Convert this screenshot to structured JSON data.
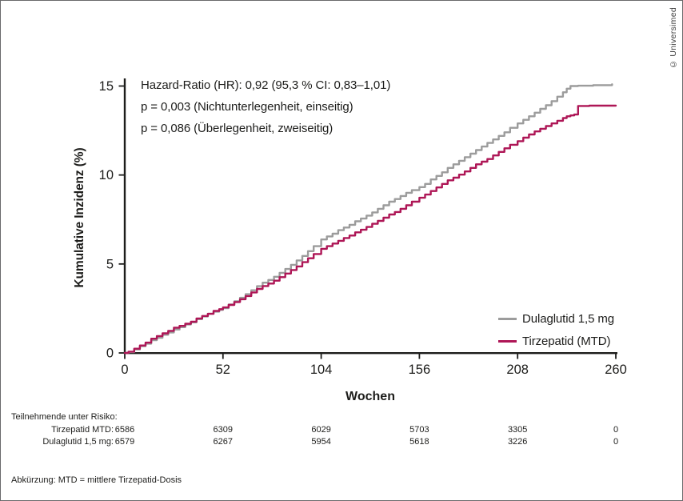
{
  "frame": {
    "copyright": "© Universimed"
  },
  "annotation": {
    "line1": "Hazard-Ratio (HR): 0,92 (95,3 % CI: 0,83–1,01)",
    "line2": "p = 0,003 (Nichtunterlegenheit, einseitig)",
    "line3": "p = 0,086 (Überlegenheit, zweiseitig)"
  },
  "chart_data": {
    "type": "line",
    "title": "",
    "xlabel": "Wochen",
    "ylabel": "Kumulative Inzidenz (%)",
    "xlim": [
      0,
      260
    ],
    "ylim": [
      0,
      15
    ],
    "xticks": [
      0,
      52,
      104,
      156,
      208,
      260
    ],
    "yticks": [
      0,
      5,
      10,
      15
    ],
    "grid": false,
    "legend_position": "lower right",
    "axis_color": "#1d1d1b",
    "series": [
      {
        "name": "Dulaglutid 1,5 mg",
        "color": "#9c9c9c",
        "points": [
          [
            0,
            0
          ],
          [
            2,
            0.05
          ],
          [
            5,
            0.2
          ],
          [
            8,
            0.38
          ],
          [
            11,
            0.52
          ],
          [
            14,
            0.72
          ],
          [
            17,
            0.85
          ],
          [
            20,
            1.02
          ],
          [
            23,
            1.15
          ],
          [
            26,
            1.32
          ],
          [
            29,
            1.45
          ],
          [
            32,
            1.6
          ],
          [
            35,
            1.72
          ],
          [
            38,
            1.9
          ],
          [
            41,
            2.05
          ],
          [
            44,
            2.2
          ],
          [
            47,
            2.32
          ],
          [
            50,
            2.42
          ],
          [
            52,
            2.52
          ],
          [
            55,
            2.72
          ],
          [
            58,
            2.9
          ],
          [
            61,
            3.1
          ],
          [
            64,
            3.3
          ],
          [
            67,
            3.52
          ],
          [
            70,
            3.75
          ],
          [
            73,
            3.95
          ],
          [
            76,
            4.1
          ],
          [
            79,
            4.28
          ],
          [
            82,
            4.5
          ],
          [
            85,
            4.72
          ],
          [
            88,
            4.95
          ],
          [
            91,
            5.2
          ],
          [
            94,
            5.45
          ],
          [
            97,
            5.72
          ],
          [
            100,
            6.0
          ],
          [
            104,
            6.38
          ],
          [
            107,
            6.55
          ],
          [
            110,
            6.7
          ],
          [
            113,
            6.9
          ],
          [
            116,
            7.05
          ],
          [
            119,
            7.2
          ],
          [
            122,
            7.4
          ],
          [
            125,
            7.55
          ],
          [
            128,
            7.72
          ],
          [
            131,
            7.9
          ],
          [
            134,
            8.1
          ],
          [
            137,
            8.3
          ],
          [
            140,
            8.5
          ],
          [
            143,
            8.65
          ],
          [
            146,
            8.82
          ],
          [
            149,
            9.0
          ],
          [
            152,
            9.15
          ],
          [
            156,
            9.32
          ],
          [
            159,
            9.5
          ],
          [
            162,
            9.75
          ],
          [
            165,
            9.95
          ],
          [
            168,
            10.15
          ],
          [
            171,
            10.4
          ],
          [
            174,
            10.6
          ],
          [
            177,
            10.8
          ],
          [
            180,
            11.0
          ],
          [
            183,
            11.2
          ],
          [
            186,
            11.4
          ],
          [
            189,
            11.6
          ],
          [
            192,
            11.8
          ],
          [
            195,
            12.0
          ],
          [
            198,
            12.2
          ],
          [
            201,
            12.4
          ],
          [
            204,
            12.65
          ],
          [
            208,
            12.9
          ],
          [
            211,
            13.1
          ],
          [
            214,
            13.3
          ],
          [
            217,
            13.5
          ],
          [
            220,
            13.72
          ],
          [
            223,
            13.92
          ],
          [
            226,
            14.15
          ],
          [
            229,
            14.4
          ],
          [
            232,
            14.65
          ],
          [
            234,
            14.85
          ],
          [
            236,
            15.0
          ],
          [
            240,
            15.02
          ],
          [
            248,
            15.05
          ],
          [
            258,
            15.1
          ]
        ]
      },
      {
        "name": "Tirzepatid (MTD)",
        "color": "#ae1656",
        "points": [
          [
            0,
            0
          ],
          [
            2,
            0.07
          ],
          [
            5,
            0.24
          ],
          [
            8,
            0.42
          ],
          [
            11,
            0.58
          ],
          [
            14,
            0.8
          ],
          [
            17,
            0.95
          ],
          [
            20,
            1.1
          ],
          [
            23,
            1.24
          ],
          [
            26,
            1.42
          ],
          [
            29,
            1.52
          ],
          [
            32,
            1.64
          ],
          [
            35,
            1.76
          ],
          [
            38,
            1.94
          ],
          [
            41,
            2.08
          ],
          [
            44,
            2.2
          ],
          [
            47,
            2.36
          ],
          [
            50,
            2.46
          ],
          [
            52,
            2.56
          ],
          [
            55,
            2.7
          ],
          [
            58,
            2.86
          ],
          [
            61,
            3.02
          ],
          [
            64,
            3.2
          ],
          [
            67,
            3.4
          ],
          [
            70,
            3.6
          ],
          [
            73,
            3.76
          ],
          [
            76,
            3.9
          ],
          [
            79,
            4.06
          ],
          [
            82,
            4.26
          ],
          [
            85,
            4.46
          ],
          [
            88,
            4.66
          ],
          [
            91,
            4.86
          ],
          [
            94,
            5.1
          ],
          [
            97,
            5.32
          ],
          [
            100,
            5.56
          ],
          [
            104,
            5.85
          ],
          [
            107,
            6.0
          ],
          [
            110,
            6.15
          ],
          [
            113,
            6.3
          ],
          [
            116,
            6.46
          ],
          [
            119,
            6.6
          ],
          [
            122,
            6.78
          ],
          [
            125,
            6.92
          ],
          [
            128,
            7.08
          ],
          [
            131,
            7.26
          ],
          [
            134,
            7.42
          ],
          [
            137,
            7.6
          ],
          [
            140,
            7.78
          ],
          [
            143,
            7.92
          ],
          [
            146,
            8.1
          ],
          [
            149,
            8.3
          ],
          [
            152,
            8.5
          ],
          [
            156,
            8.72
          ],
          [
            159,
            8.9
          ],
          [
            162,
            9.1
          ],
          [
            165,
            9.3
          ],
          [
            168,
            9.5
          ],
          [
            171,
            9.7
          ],
          [
            174,
            9.85
          ],
          [
            177,
            10.02
          ],
          [
            180,
            10.2
          ],
          [
            183,
            10.4
          ],
          [
            186,
            10.6
          ],
          [
            189,
            10.75
          ],
          [
            192,
            10.9
          ],
          [
            195,
            11.1
          ],
          [
            198,
            11.3
          ],
          [
            201,
            11.5
          ],
          [
            204,
            11.7
          ],
          [
            208,
            11.9
          ],
          [
            211,
            12.1
          ],
          [
            214,
            12.28
          ],
          [
            217,
            12.45
          ],
          [
            220,
            12.6
          ],
          [
            223,
            12.75
          ],
          [
            226,
            12.9
          ],
          [
            229,
            13.05
          ],
          [
            232,
            13.2
          ],
          [
            234,
            13.3
          ],
          [
            236,
            13.35
          ],
          [
            238,
            13.4
          ],
          [
            240,
            13.88
          ],
          [
            246,
            13.9
          ],
          [
            252,
            13.9
          ],
          [
            260,
            13.9
          ]
        ]
      }
    ]
  },
  "risk_table": {
    "title": "Teilnehmende unter Risiko:",
    "rows": [
      {
        "label": "Tirzepatid MTD:",
        "values": [
          "6586",
          "6309",
          "6029",
          "5703",
          "3305",
          "0"
        ]
      },
      {
        "label": "Dulaglutid 1,5 mg:",
        "values": [
          "6579",
          "6267",
          "5954",
          "5618",
          "3226",
          "0"
        ]
      }
    ]
  },
  "footnote": "Abkürzung: MTD = mittlere Tirzepatid-Dosis"
}
